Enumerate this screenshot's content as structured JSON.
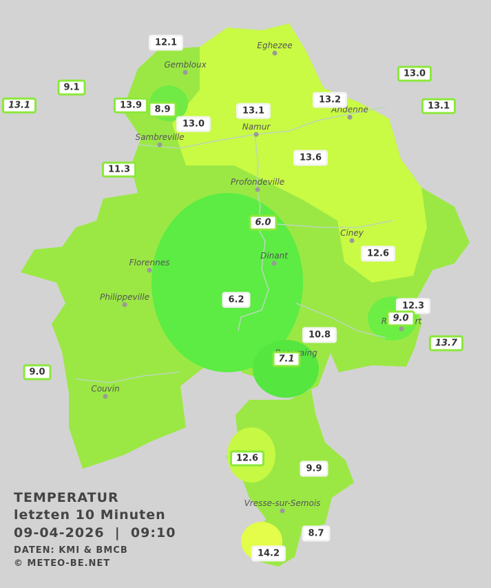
{
  "title": "TEMPERATUR",
  "subtitle": "letzten 10 Minuten",
  "datetime": "09-04-2026  |  09:10",
  "source": "DATEN: KMI & BMCB",
  "copyright": "© METEO-BE.NET",
  "towns": [
    "Eghezee",
    "Gembloux",
    "Andenne",
    "Namur",
    "Sambreville",
    "Profondeville",
    "Ciney",
    "Dinant",
    "Florennes",
    "Philippeville",
    "Rochefort",
    "Beauraing",
    "Couvin",
    "Vresse-sur-Semois"
  ],
  "stations": [
    "12.1",
    "9.1",
    "13.1",
    "13.9",
    "8.9",
    "13.0",
    "13.1",
    "13.2",
    "13.0",
    "13.1",
    "11.3",
    "13.6",
    "6.0",
    "12.6",
    "6.2",
    "12.3",
    "9.0",
    "10.8",
    "13.7",
    "7.1",
    "9.0",
    "12.6",
    "9.9",
    "8.7",
    "14.2"
  ]
}
